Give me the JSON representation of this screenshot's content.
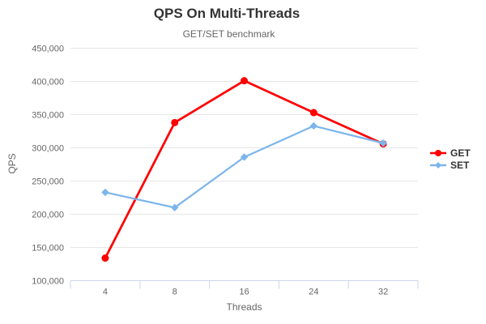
{
  "chart_data": {
    "type": "line",
    "title": "QPS On Multi-Threads",
    "subtitle": "GET/SET benchmark",
    "xlabel": "Threads",
    "ylabel": "QPS",
    "categories": [
      "4",
      "8",
      "16",
      "24",
      "32"
    ],
    "series": [
      {
        "name": "GET",
        "color": "#ff0000",
        "marker": "circle",
        "values": [
          134000,
          338000,
          401000,
          353000,
          306000
        ]
      },
      {
        "name": "SET",
        "color": "#7cb5ec",
        "marker": "diamond",
        "values": [
          233000,
          210000,
          286000,
          333000,
          307000
        ]
      }
    ],
    "ylim": [
      100000,
      450000
    ],
    "ytick_step": 50000,
    "ytick_labels": [
      "100,000",
      "150,000",
      "200,000",
      "250,000",
      "300,000",
      "350,000",
      "400,000",
      "450,000"
    ],
    "legend_position": "right",
    "grid": true,
    "colors": {
      "grid_line": "#e6e6e6",
      "axis_line": "#ccd6eb",
      "tick_label": "#666666",
      "axis_title": "#666666",
      "title_text": "#333333",
      "legend_text": "#333333",
      "background": "#ffffff"
    }
  }
}
